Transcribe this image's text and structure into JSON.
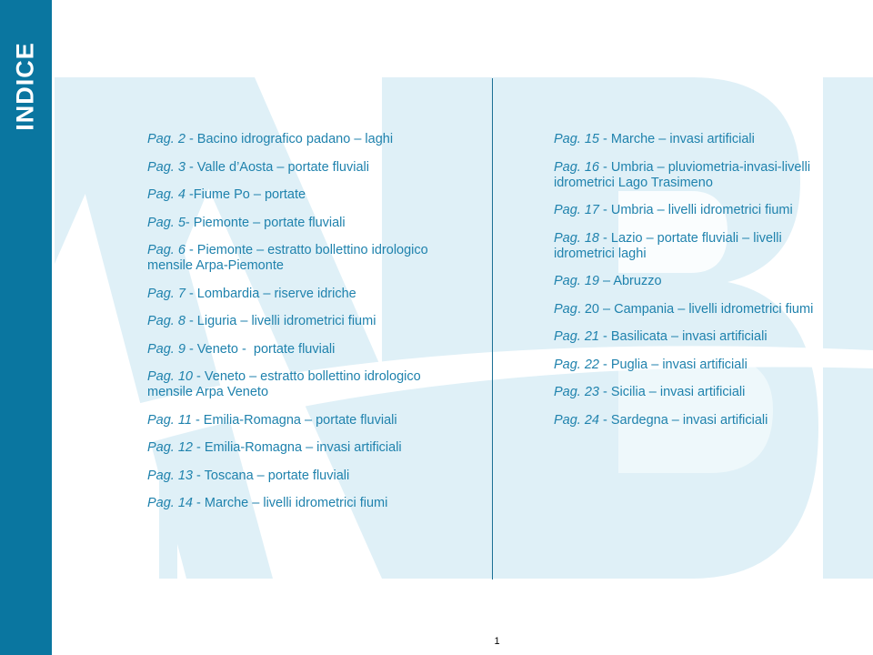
{
  "sidebar": {
    "title": "INDICE"
  },
  "colors": {
    "sidebar": "#0a76a0",
    "text": "#1f82ad",
    "watermark": "#dff0f7"
  },
  "left_entries": [
    {
      "page": "Pag. 2",
      "text": " - Bacino idrografico padano – laghi"
    },
    {
      "page": "Pag. 3",
      "text": " - Valle d’Aosta – portate fluviali"
    },
    {
      "page": "Pag. 4",
      "text": " -Fiume Po – portate"
    },
    {
      "page": "Pag. 5",
      "text": "- Piemonte – portate fluviali"
    },
    {
      "page": "Pag. 6",
      "text": " - Piemonte – estratto bollettino idrologico mensile Arpa-Piemonte"
    },
    {
      "page": "Pag. 7",
      "text": " - Lombardia – riserve idriche"
    },
    {
      "page": "Pag. 8",
      "text": " - Liguria – livelli idrometrici fiumi"
    },
    {
      "page": "Pag. 9",
      "text": " - Veneto -  portate fluviali"
    },
    {
      "page": "Pag. 10",
      "text": " - Veneto – estratto bollettino idrologico mensile Arpa Veneto"
    },
    {
      "page": "Pag. 11",
      "text": " - Emilia-Romagna – portate fluviali"
    },
    {
      "page": "Pag. 12",
      "text": " - Emilia-Romagna – invasi artificiali"
    },
    {
      "page": "Pag. 13",
      "text": " - Toscana – portate fluviali"
    },
    {
      "page": "Pag. 14",
      "text": " - Marche – livelli idrometrici fiumi"
    }
  ],
  "right_entries": [
    {
      "page": "Pag. 15",
      "text": " - Marche – invasi artificiali"
    },
    {
      "page": "Pag. 16",
      "text": " - Umbria – pluviometria-invasi-livelli idrometrici Lago Trasimeno"
    },
    {
      "page": "Pag. 17",
      "text": " - Umbria – livelli idrometrici fiumi"
    },
    {
      "page": "Pag. 18",
      "text": " - Lazio – portate fluviali – livelli idrometrici laghi"
    },
    {
      "page": "Pag. 19",
      "text": " – Abruzzo"
    },
    {
      "page": "Pag",
      "text": ". 20 – Campania – livelli idrometrici fiumi"
    },
    {
      "page": "Pag. 21",
      "text": " - Basilicata – invasi artificiali"
    },
    {
      "page": "Pag. 22",
      "text": " - Puglia – invasi artificiali"
    },
    {
      "page": "Pag. 23",
      "text": " - Sicilia – invasi artificiali"
    },
    {
      "page": "Pag. 24",
      "text": " - Sardegna – invasi artificiali"
    }
  ],
  "footer": {
    "page_number": "1"
  }
}
